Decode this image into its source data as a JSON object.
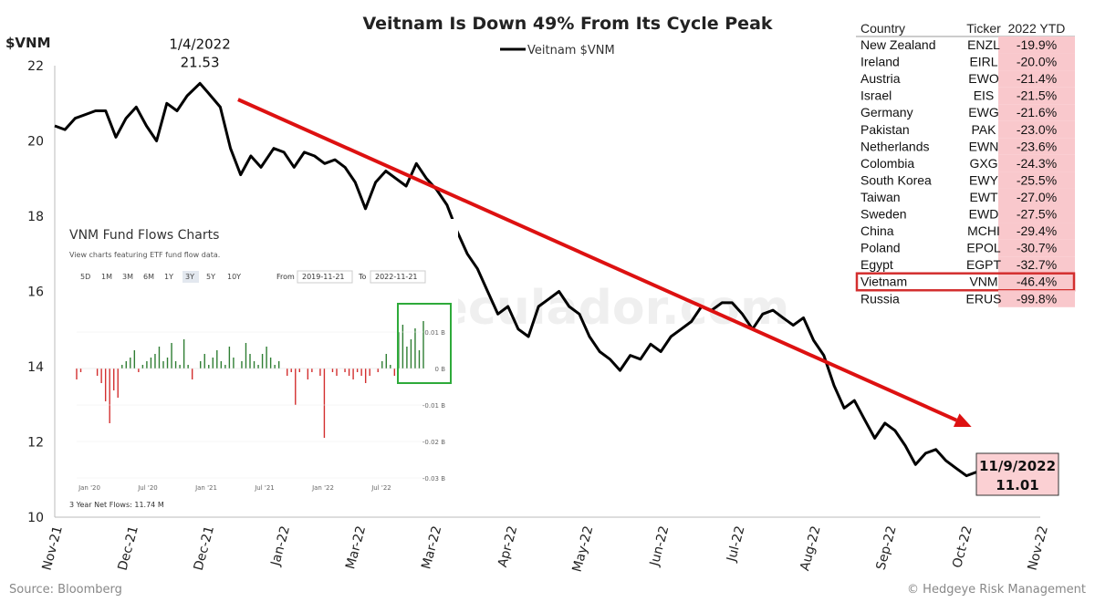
{
  "chart_data": {
    "type": "line",
    "title": "Veitnam Is Down 49% From Its Cycle Peak",
    "ylabel": "$VNM",
    "ylim": [
      10,
      22
    ],
    "yticks": [
      10,
      12,
      14,
      16,
      18,
      20,
      22
    ],
    "xlim": [
      "2021-11-08",
      "2022-11-30"
    ],
    "xtick_labels": [
      "Nov-21",
      "Dec-21",
      "Dec-21",
      "Jan-22",
      "Mar-22",
      "Mar-22",
      "Apr-22",
      "May-22",
      "Jun-22",
      "Jul-22",
      "Aug-22",
      "Sep-22",
      "Oct-22",
      "Nov-22"
    ],
    "xtick_dates": [
      "2021-11-08",
      "2021-12-08",
      "2022-01-07",
      "2022-02-06",
      "2022-03-08",
      "2022-04-07",
      "2022-05-07",
      "2022-06-06",
      "2022-07-06",
      "2022-08-05",
      "2022-09-04",
      "2022-10-04",
      "2022-11-03",
      "2022-12-03"
    ],
    "grid": false,
    "legend_position": "top",
    "series": [
      {
        "name": "Veitnam $VNM",
        "color": "#000000",
        "x": [
          "2021-11-08",
          "2021-11-12",
          "2021-11-16",
          "2021-11-20",
          "2021-11-24",
          "2021-11-28",
          "2021-12-02",
          "2021-12-06",
          "2021-12-10",
          "2021-12-14",
          "2021-12-18",
          "2021-12-22",
          "2021-12-26",
          "2021-12-30",
          "2022-01-04",
          "2022-01-07",
          "2022-01-12",
          "2022-01-16",
          "2022-01-20",
          "2022-01-24",
          "2022-01-28",
          "2022-02-02",
          "2022-02-06",
          "2022-02-10",
          "2022-02-14",
          "2022-02-18",
          "2022-02-22",
          "2022-02-26",
          "2022-03-02",
          "2022-03-06",
          "2022-03-10",
          "2022-03-14",
          "2022-03-18",
          "2022-03-22",
          "2022-03-26",
          "2022-03-30",
          "2022-04-03",
          "2022-04-07",
          "2022-04-11",
          "2022-04-15",
          "2022-04-19",
          "2022-04-23",
          "2022-04-27",
          "2022-05-01",
          "2022-05-05",
          "2022-05-09",
          "2022-05-13",
          "2022-05-17",
          "2022-05-21",
          "2022-05-25",
          "2022-05-29",
          "2022-06-02",
          "2022-06-06",
          "2022-06-10",
          "2022-06-14",
          "2022-06-18",
          "2022-06-22",
          "2022-06-26",
          "2022-06-30",
          "2022-07-04",
          "2022-07-08",
          "2022-07-12",
          "2022-07-16",
          "2022-07-20",
          "2022-07-24",
          "2022-07-28",
          "2022-08-01",
          "2022-08-05",
          "2022-08-09",
          "2022-08-13",
          "2022-08-17",
          "2022-08-21",
          "2022-08-25",
          "2022-08-29",
          "2022-09-02",
          "2022-09-06",
          "2022-09-10",
          "2022-09-14",
          "2022-09-18",
          "2022-09-22",
          "2022-09-26",
          "2022-09-30",
          "2022-10-04",
          "2022-10-08",
          "2022-10-12",
          "2022-10-16",
          "2022-10-20",
          "2022-10-24",
          "2022-10-28",
          "2022-11-01",
          "2022-11-05",
          "2022-11-09"
        ],
        "y": [
          20.4,
          20.3,
          20.6,
          20.7,
          20.8,
          20.8,
          20.1,
          20.6,
          20.9,
          20.4,
          20.0,
          21.0,
          20.8,
          21.2,
          21.53,
          21.3,
          20.9,
          19.8,
          19.1,
          19.6,
          19.3,
          19.8,
          19.7,
          19.3,
          19.7,
          19.6,
          19.4,
          19.5,
          19.3,
          18.9,
          18.2,
          18.9,
          19.2,
          19.0,
          18.8,
          19.4,
          19.0,
          18.7,
          18.3,
          17.6,
          17.0,
          16.6,
          16.0,
          15.4,
          15.6,
          15.0,
          14.8,
          15.6,
          15.8,
          16.0,
          15.6,
          15.4,
          14.8,
          14.4,
          14.2,
          13.9,
          14.3,
          14.2,
          14.6,
          14.4,
          14.8,
          15.0,
          15.2,
          15.6,
          15.5,
          15.7,
          15.7,
          15.4,
          15.0,
          15.4,
          15.5,
          15.3,
          15.1,
          15.3,
          14.7,
          14.3,
          13.5,
          12.9,
          13.1,
          12.6,
          12.1,
          12.5,
          12.3,
          11.9,
          11.4,
          11.7,
          11.8,
          11.5,
          11.3,
          11.1,
          11.2,
          11.01
        ]
      },
      {
        "name": "",
        "color": "#dd1111",
        "x": [
          "2022-01-19",
          "2022-11-03"
        ],
        "y": [
          21.1,
          12.4
        ]
      }
    ],
    "annotations": [
      {
        "date_label": "1/4/2022",
        "value_label": "21.53",
        "x": "2022-01-04",
        "y": 21.53
      },
      {
        "date_label": "11/9/2022",
        "value_label": "11.01",
        "x": "2022-11-09",
        "y": 11.01
      }
    ],
    "watermark": "UnEspeculador.com",
    "source": "Source: Bloomberg",
    "copyright": "© Hedgeye Risk Management"
  },
  "table": {
    "headers": [
      "Country",
      "Ticker",
      "2022 YTD"
    ],
    "rows": [
      {
        "country": "New Zealand",
        "ticker": "ENZL",
        "ytd": "-19.9%"
      },
      {
        "country": "Ireland",
        "ticker": "EIRL",
        "ytd": "-20.0%"
      },
      {
        "country": "Austria",
        "ticker": "EWO",
        "ytd": "-21.4%"
      },
      {
        "country": "Israel",
        "ticker": "EIS",
        "ytd": "-21.5%"
      },
      {
        "country": "Germany",
        "ticker": "EWG",
        "ytd": "-21.6%"
      },
      {
        "country": "Pakistan",
        "ticker": "PAK",
        "ytd": "-23.0%"
      },
      {
        "country": "Netherlands",
        "ticker": "EWN",
        "ytd": "-23.6%"
      },
      {
        "country": "Colombia",
        "ticker": "GXG",
        "ytd": "-24.3%"
      },
      {
        "country": "South Korea",
        "ticker": "EWY",
        "ytd": "-25.5%"
      },
      {
        "country": "Taiwan",
        "ticker": "EWT",
        "ytd": "-27.0%"
      },
      {
        "country": "Sweden",
        "ticker": "EWD",
        "ytd": "-27.5%"
      },
      {
        "country": "China",
        "ticker": "MCHI",
        "ytd": "-29.4%"
      },
      {
        "country": "Poland",
        "ticker": "EPOL",
        "ytd": "-30.7%"
      },
      {
        "country": "Egypt",
        "ticker": "EGPT",
        "ytd": "-32.7%"
      },
      {
        "country": "Vietnam",
        "ticker": "VNM",
        "ytd": "-46.4%",
        "highlight": true
      },
      {
        "country": "Russia",
        "ticker": "ERUS",
        "ytd": "-99.8%"
      }
    ],
    "ytd_cell_color": "#f9c8cc",
    "highlight_color": "#d32f2f"
  },
  "inset": {
    "title": "VNM Fund Flows Charts",
    "subtitle": "View charts featuring ETF fund flow data.",
    "ranges": [
      "5D",
      "1M",
      "3M",
      "6M",
      "1Y",
      "3Y",
      "5Y",
      "10Y"
    ],
    "active_range": "3Y",
    "from_label": "From",
    "from_value": "2019-11-21",
    "to_label": "To",
    "to_value": "2022-11-21",
    "ytick_labels": [
      "0.01 B",
      "0 B",
      "-0.01 B",
      "-0.02 B",
      "-0.03 B"
    ],
    "xtick_labels": [
      "Jan '20",
      "Jul '20",
      "Jan '21",
      "Jul '21",
      "Jan '22",
      "Jul '22"
    ],
    "net_flows": "3 Year Net Flows: 11.74 M",
    "positive_color": "#2e7d32",
    "negative_color": "#d32f2f",
    "highlight_box_color": "#2eaa3a",
    "flows": [
      -0.003,
      -0.001,
      0,
      0,
      0,
      -0.002,
      -0.004,
      -0.009,
      -0.015,
      -0.006,
      -0.008,
      0.001,
      0.002,
      0.003,
      0.005,
      -0.001,
      0.001,
      0.002,
      0.003,
      0.004,
      0.006,
      0.002,
      0.003,
      0.007,
      0.002,
      0.001,
      0.008,
      0.001,
      -0.003,
      0,
      0.002,
      0.004,
      0.001,
      0.003,
      0.005,
      0.002,
      0.001,
      0.006,
      0.003,
      0,
      0.002,
      0.007,
      0.004,
      0.002,
      0.001,
      0.004,
      0.006,
      0.003,
      0.001,
      0.002,
      0,
      -0.002,
      -0.001,
      -0.01,
      -0.001,
      0,
      -0.003,
      -0.001,
      0,
      -0.002,
      -0.019,
      0,
      -0.001,
      -0.002,
      0,
      -0.001,
      -0.002,
      -0.003,
      -0.001,
      -0.002,
      -0.004,
      -0.002,
      0,
      -0.001,
      0.002,
      0.004,
      0.001,
      -0.002,
      0.01,
      0.012,
      0.006,
      0.008,
      0.011,
      0.005,
      0.013
    ]
  }
}
